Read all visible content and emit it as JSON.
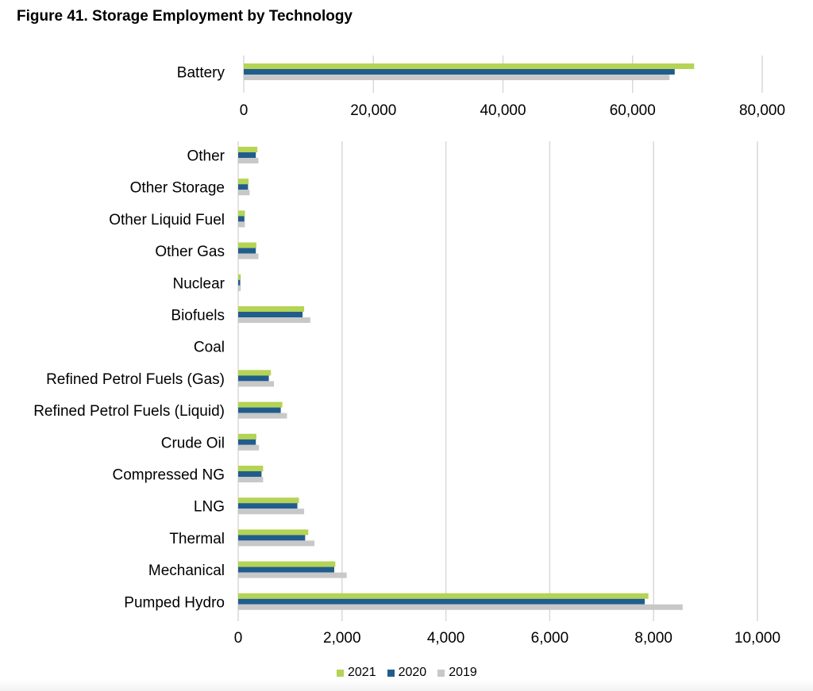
{
  "figure_title": "Figure 41. Storage Employment by Technology",
  "colors": {
    "2021": "#b5d354",
    "2020": "#215d8c",
    "2019": "#c8c8c8",
    "grid": "#d9d9d9"
  },
  "legend": [
    {
      "name": "2021",
      "color": "#b5d354"
    },
    {
      "name": "2020",
      "color": "#215d8c"
    },
    {
      "name": "2019",
      "color": "#c8c8c8"
    }
  ],
  "chart_data": [
    {
      "type": "bar",
      "orientation": "horizontal",
      "categories": [
        "Battery"
      ],
      "series": [
        {
          "name": "2021",
          "values": [
            69500
          ]
        },
        {
          "name": "2020",
          "values": [
            66500
          ]
        },
        {
          "name": "2019",
          "values": [
            65700
          ]
        }
      ],
      "xlim": [
        0,
        80000
      ],
      "xticks": [
        "0",
        "20,000",
        "40,000",
        "60,000",
        "80,000"
      ],
      "grid": "vertical",
      "legend": "none"
    },
    {
      "type": "bar",
      "orientation": "horizontal",
      "categories": [
        "Other",
        "Other Storage",
        "Other Liquid Fuel",
        "Other Gas",
        "Nuclear",
        "Biofuels",
        "Coal",
        "Refined Petrol Fuels (Gas)",
        "Refined Petrol Fuels (Liquid)",
        "Crude Oil",
        "Compressed NG",
        "LNG",
        "Thermal",
        "Mechanical",
        "Pumped Hydro"
      ],
      "series": [
        {
          "name": "2021",
          "values": [
            370,
            200,
            130,
            350,
            50,
            1270,
            0,
            630,
            850,
            350,
            480,
            1170,
            1350,
            1870,
            7900
          ]
        },
        {
          "name": "2020",
          "values": [
            340,
            190,
            120,
            340,
            40,
            1240,
            0,
            590,
            820,
            340,
            450,
            1140,
            1290,
            1850,
            7830
          ]
        },
        {
          "name": "2019",
          "values": [
            390,
            220,
            130,
            390,
            50,
            1390,
            0,
            690,
            940,
            400,
            480,
            1270,
            1470,
            2090,
            8560
          ]
        }
      ],
      "xlim": [
        0,
        10000
      ],
      "xticks": [
        "0",
        "2,000",
        "4,000",
        "6,000",
        "8,000",
        "10,000"
      ],
      "grid": "vertical",
      "legend": "bottom-center"
    }
  ]
}
